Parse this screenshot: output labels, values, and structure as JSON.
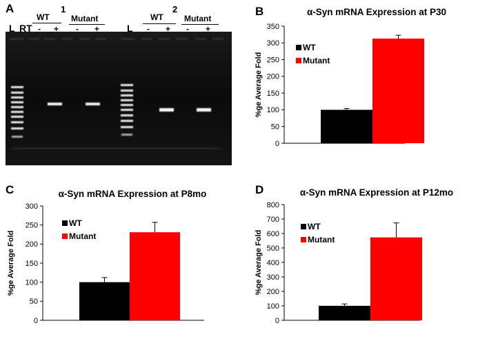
{
  "panel_labels": [
    "A",
    "B",
    "C",
    "D"
  ],
  "gel": {
    "block1": {
      "number": "1",
      "ladder": "L",
      "rt": "RT",
      "wt": "WT",
      "mutant": "Mutant",
      "minus": "-",
      "plus": "+"
    },
    "block2": {
      "number": "2",
      "ladder": "L",
      "wt": "WT",
      "mutant": "Mutant",
      "minus": "-",
      "plus": "+"
    }
  },
  "colors": {
    "wt": "#000000",
    "mutant": "#ff0000",
    "gel_bg": "#0d0d0d",
    "band": "#f2f2f2"
  },
  "chart_data": [
    {
      "type": "bar",
      "title": "α-Syn mRNA Expression at P30",
      "ylabel": "%ge Average Fold",
      "ylim": [
        0,
        350
      ],
      "yticks": [
        "0",
        "50",
        "100",
        "150",
        "200",
        "250",
        "300",
        "350"
      ],
      "categories": [
        "WT",
        "Mutant"
      ],
      "values": [
        100,
        313
      ],
      "errors": [
        4,
        10
      ],
      "legend": [
        "WT",
        "Mutant"
      ],
      "legend_position": "top-left"
    },
    {
      "type": "bar",
      "title": "α-Syn mRNA Expression at P8mo",
      "ylabel": "%ge Average Fold",
      "ylim": [
        0,
        300
      ],
      "yticks": [
        "0",
        "50",
        "100",
        "150",
        "200",
        "250",
        "300"
      ],
      "categories": [
        "WT",
        "Mutant"
      ],
      "values": [
        100,
        231
      ],
      "errors": [
        12,
        26
      ],
      "legend": [
        "WT",
        "Mutant"
      ],
      "legend_position": "top-left"
    },
    {
      "type": "bar",
      "title": "α-Syn mRNA Expression at P12mo",
      "ylabel": "%ge Average Fold",
      "ylim": [
        0,
        800
      ],
      "yticks": [
        "0",
        "100",
        "200",
        "300",
        "400",
        "500",
        "600",
        "700",
        "800"
      ],
      "categories": [
        "WT",
        "Mutant"
      ],
      "values": [
        100,
        573
      ],
      "errors": [
        13,
        100
      ],
      "legend": [
        "WT",
        "Mutant"
      ],
      "legend_position": "top-left"
    }
  ]
}
